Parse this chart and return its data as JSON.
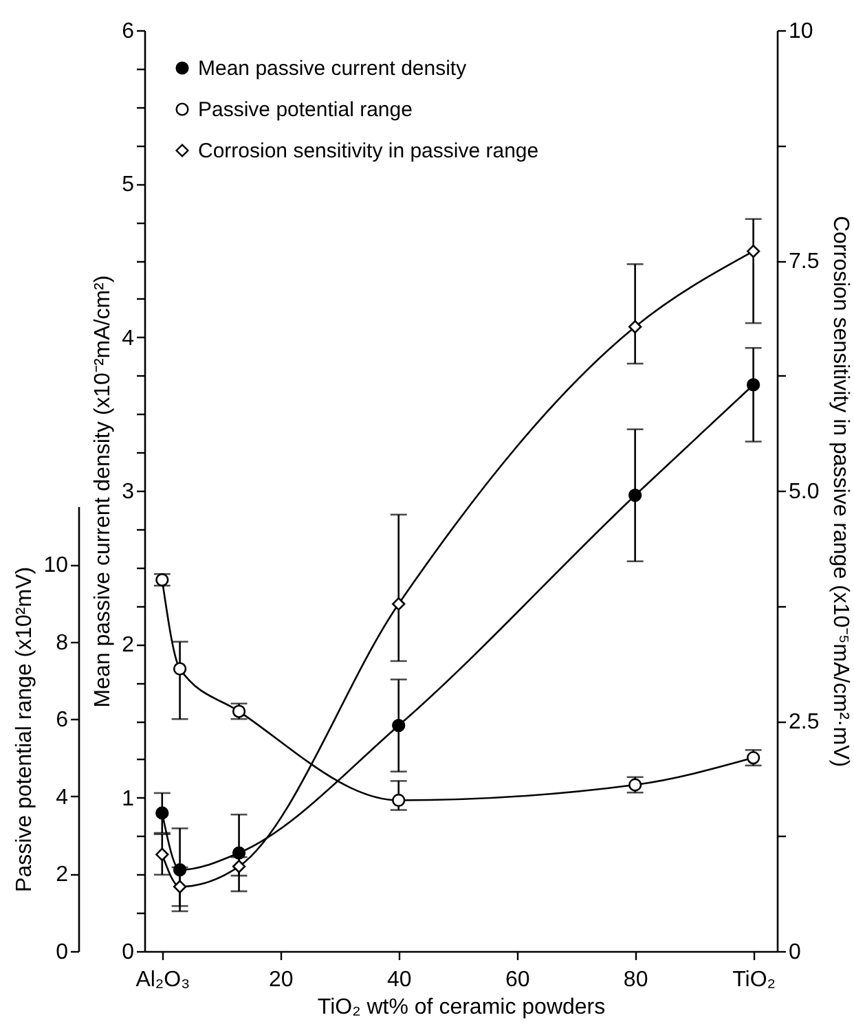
{
  "chart_data": {
    "type": "line",
    "xlabel": "TiO₂ wt% of ceramic powders",
    "ylabel": "Mean passive current density (x10⁻²mA/cm²)",
    "y2label": "Corrosion sensitivity in passive range (x10⁻⁵mA/cm²·mV)",
    "y3label": "Passive potential range (x10²mV)",
    "x": [
      0,
      3,
      13,
      40,
      80,
      100
    ],
    "xlim": [
      -3,
      104
    ],
    "xticks": [
      {
        "value": 0,
        "label": "Al₂O₃"
      },
      20,
      40,
      60,
      80,
      {
        "value": 100,
        "label": "TiO₂"
      }
    ],
    "ylim": [
      0,
      6
    ],
    "yticks": [
      0,
      {
        "value": 0.25,
        "label": null
      },
      {
        "value": 0.5,
        "label": null
      },
      {
        "value": 0.75,
        "label": null
      },
      1,
      {
        "value": 1.25,
        "label": null
      },
      {
        "value": 1.5,
        "label": null
      },
      {
        "value": 1.75,
        "label": null
      },
      2,
      {
        "value": 2.25,
        "label": null
      },
      {
        "value": 2.5,
        "label": null
      },
      {
        "value": 2.75,
        "label": null
      },
      3,
      {
        "value": 3.25,
        "label": null
      },
      {
        "value": 3.5,
        "label": null
      },
      {
        "value": 3.75,
        "label": null
      },
      4,
      {
        "value": 4.25,
        "label": null
      },
      {
        "value": 4.5,
        "label": null
      },
      {
        "value": 4.75,
        "label": null
      },
      5,
      {
        "value": 5.25,
        "label": null
      },
      {
        "value": 5.5,
        "label": null
      },
      {
        "value": 5.75,
        "label": null
      },
      6
    ],
    "y2lim": [
      0,
      10
    ],
    "y2ticks": [
      0,
      {
        "value": 1.25,
        "label": null
      },
      2.5,
      {
        "value": 3.75,
        "label": null
      },
      {
        "value": 5,
        "label": "5.0"
      },
      {
        "value": 6.25,
        "label": null
      },
      7.5,
      {
        "value": 8.75,
        "label": null
      },
      10
    ],
    "y3lim": [
      0,
      11.5
    ],
    "y3ticks": [
      0,
      2,
      4,
      6,
      8,
      10
    ],
    "grid": false,
    "legend": "top left",
    "line_style": "solid",
    "series": [
      {
        "name": "Mean passive current density",
        "color": "#000000",
        "marker": "circle",
        "values": [
          0.9,
          0.53,
          0.64,
          1.47,
          2.97,
          3.69
        ],
        "errors": [
          0.13,
          0.27,
          0.25,
          0.3,
          0.43,
          [
            3.32,
            3.93
          ]
        ]
      },
      {
        "name": "Passive potential range",
        "color": "#000000",
        "marker": "circle",
        "axis": "y3",
        "values": [
          9.6,
          7.3,
          6.2,
          3.9,
          4.3,
          5.0
        ],
        "errors": [
          0.15,
          [
            6.0,
            8.0
          ],
          0.2,
          [
            3.65,
            4.4
          ],
          0.2,
          0.2
        ]
      },
      {
        "name": "Corrosion sensitivity in passive range",
        "color": "#000000",
        "marker": "diamond",
        "axis": "y2",
        "values": [
          1.05,
          0.7,
          0.92,
          3.77,
          6.78,
          7.6
        ],
        "errors": [
          0.22,
          0.21,
          0.1,
          [
            3.15,
            4.74
          ],
          [
            6.38,
            7.46
          ],
          [
            6.82,
            7.95
          ]
        ]
      }
    ]
  }
}
